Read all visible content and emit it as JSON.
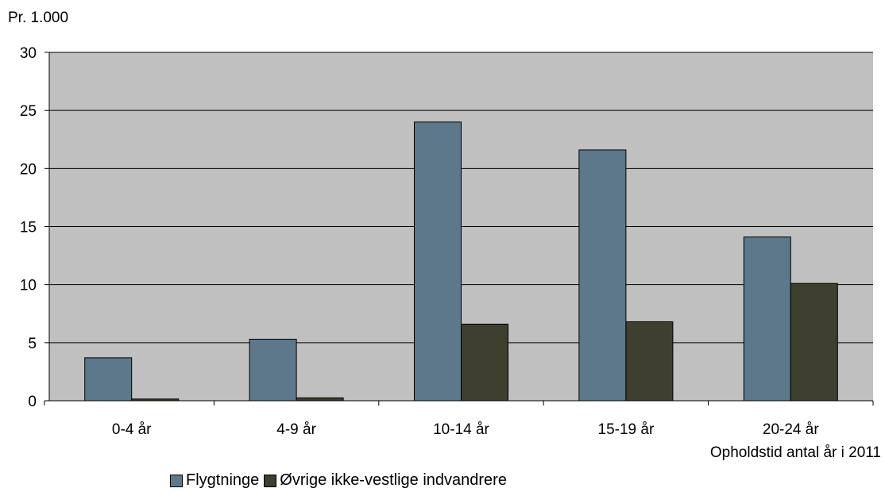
{
  "chart_data": {
    "type": "bar",
    "ylabel": "Pr. 1.000",
    "xlabel": "Opholdstid antal år i 2011",
    "categories": [
      "0-4 år",
      "4-9 år",
      "10-14 år",
      "15-19 år",
      "20-24 år"
    ],
    "series": [
      {
        "name": "Flygtninge",
        "values": [
          3.7,
          5.3,
          24.0,
          21.6,
          14.1
        ],
        "color": "#5c788a"
      },
      {
        "name": "Øvrige ikke-vestlige indvandrere",
        "values": [
          0.15,
          0.25,
          6.6,
          6.8,
          10.1
        ],
        "color": "#3e3f2e"
      }
    ],
    "ylim": [
      0,
      30
    ],
    "yticks": [
      0,
      5,
      10,
      15,
      20,
      25,
      30
    ],
    "grid": true,
    "plot_background": "#c0c0c0",
    "legend_position": "bottom"
  }
}
